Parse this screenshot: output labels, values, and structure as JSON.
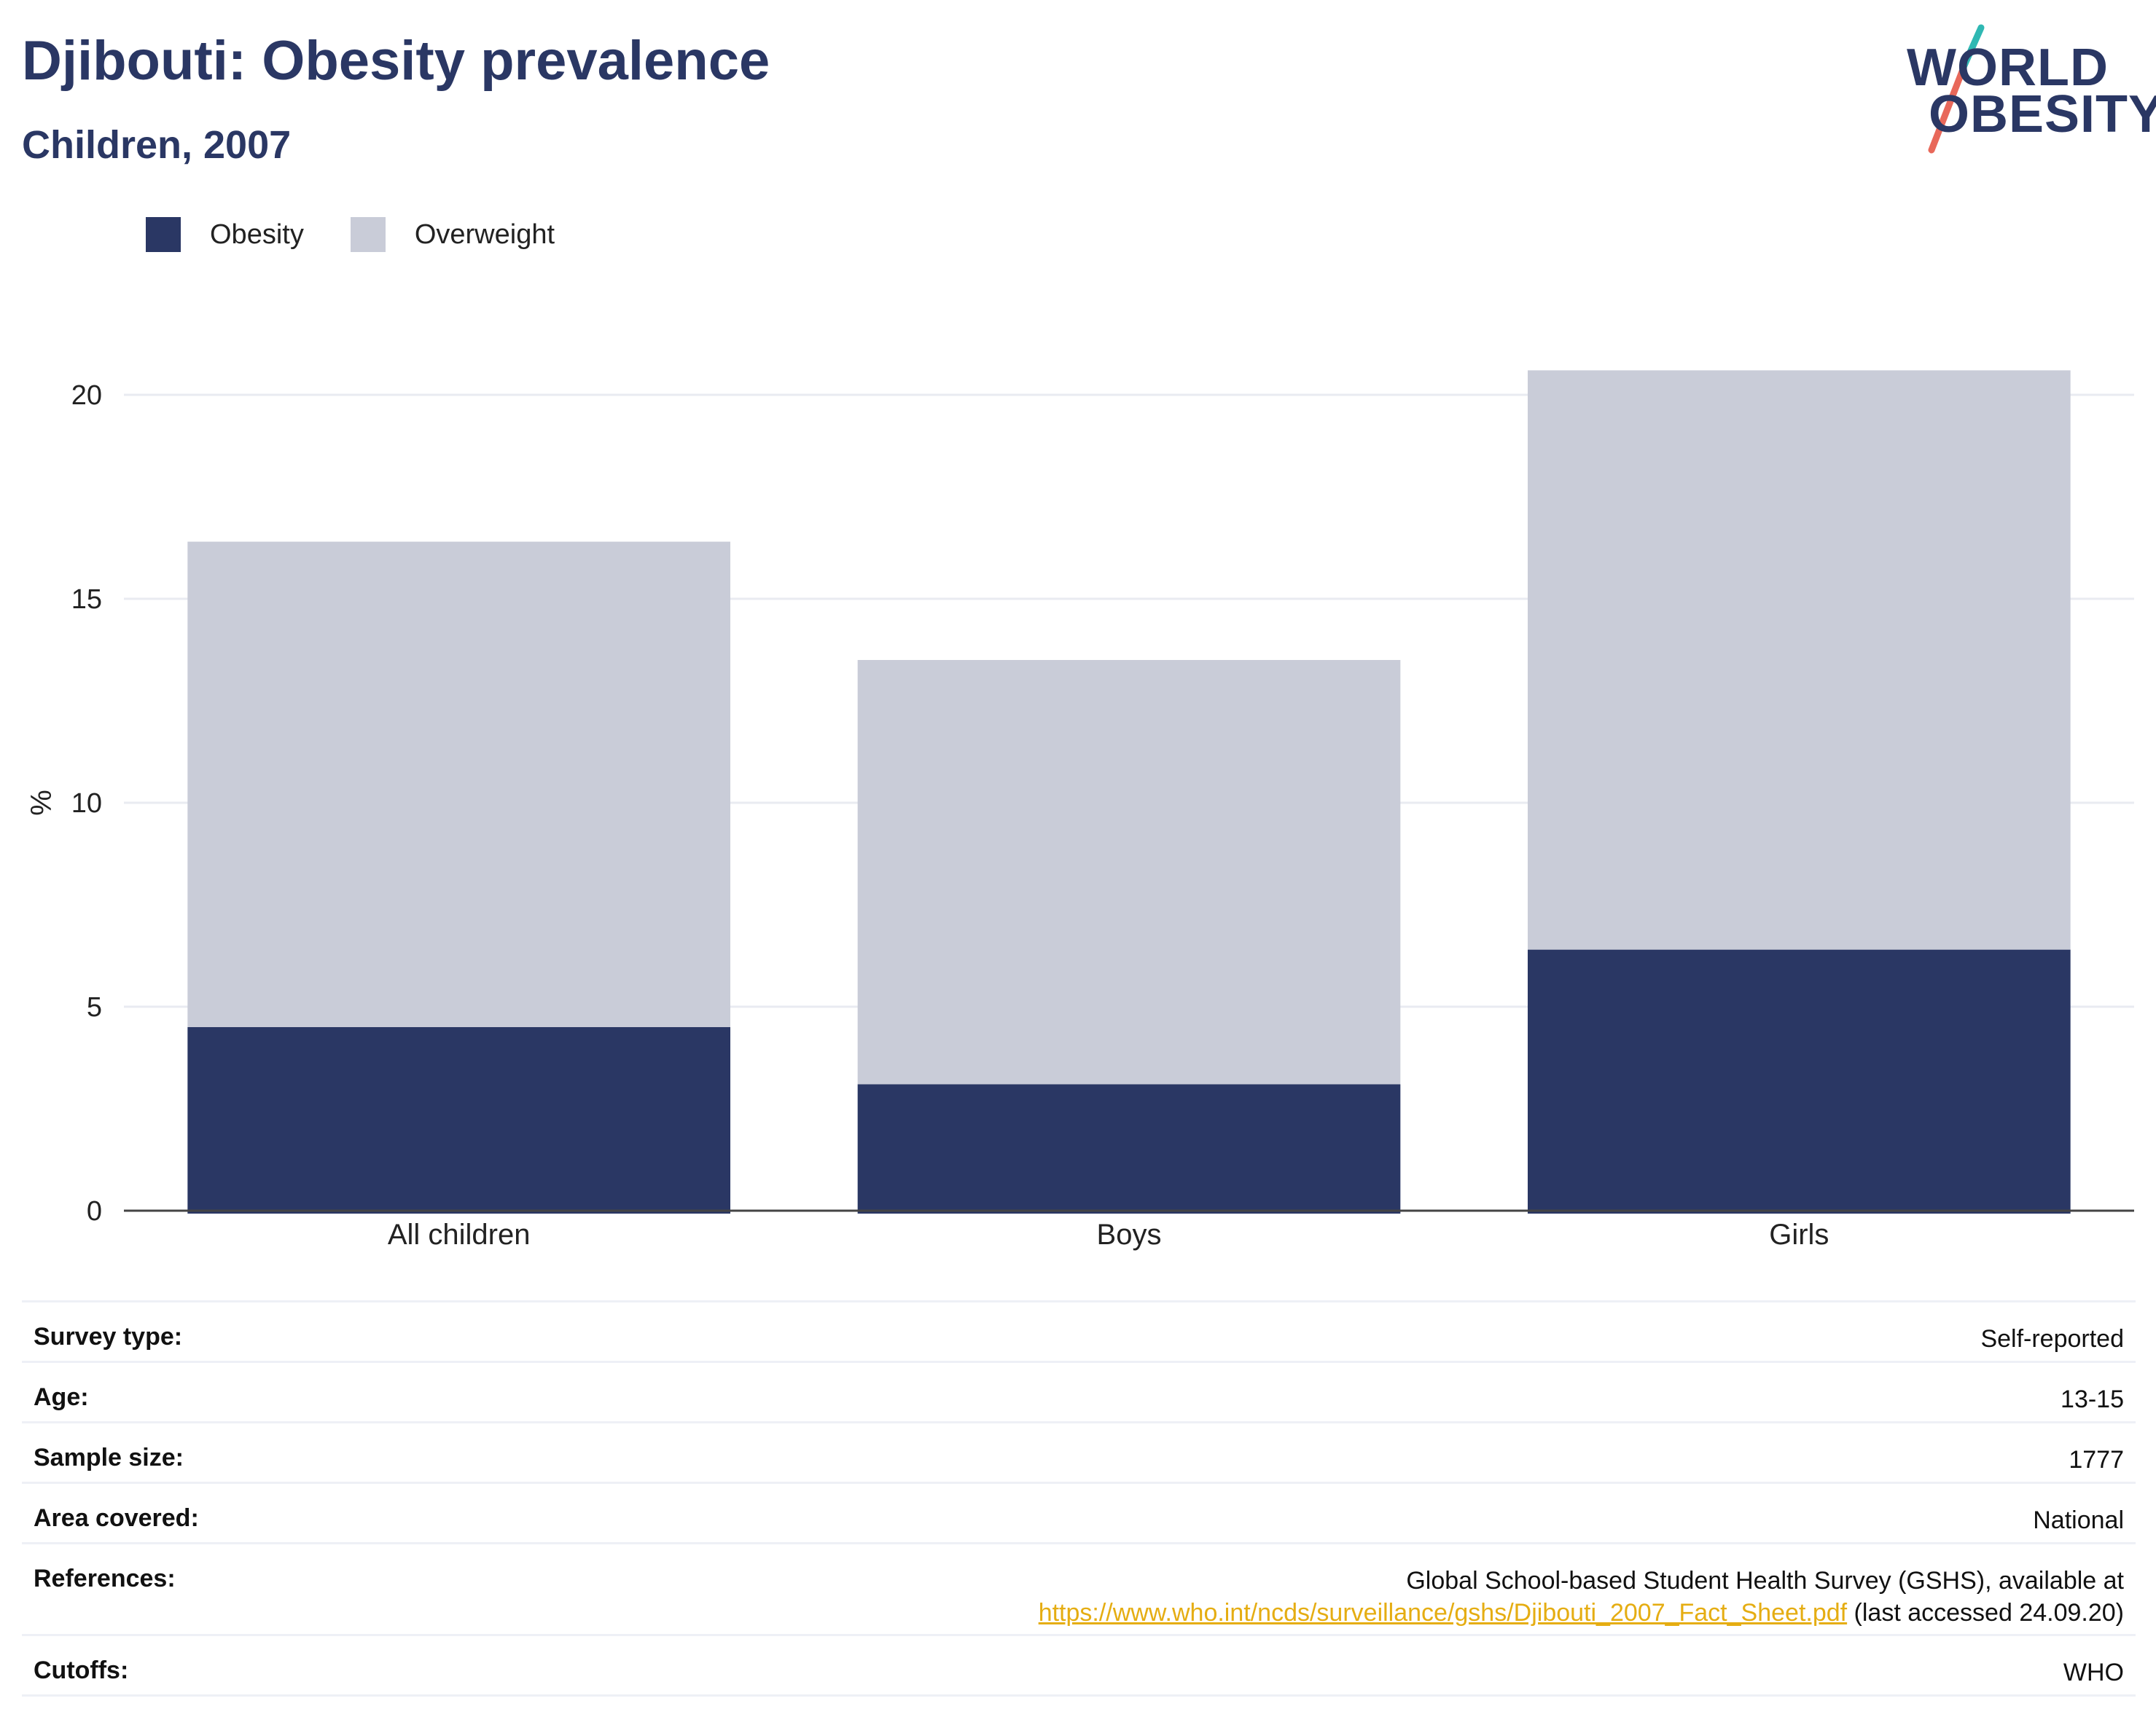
{
  "header": {
    "title": "Djibouti: Obesity prevalence",
    "subtitle": "Children, 2007"
  },
  "logo": {
    "line1": "WORLD",
    "line2": "OBESITY",
    "colors": {
      "text": "#2a3764",
      "slash_top": "#2fb8b3",
      "slash_bottom": "#e8685a"
    }
  },
  "legend": {
    "items": [
      {
        "label": "Obesity",
        "color": "#2a3764"
      },
      {
        "label": "Overweight",
        "color": "#c9ccd8"
      }
    ]
  },
  "chart_data": {
    "type": "bar",
    "stacked": true,
    "categories": [
      "All children",
      "Boys",
      "Girls"
    ],
    "series": [
      {
        "name": "Obesity",
        "values": [
          4.5,
          3.1,
          6.4
        ],
        "color": "#2a3764"
      },
      {
        "name": "Overweight",
        "values": [
          11.9,
          10.4,
          14.2
        ],
        "color": "#c9ccd8"
      }
    ],
    "title": "Djibouti: Obesity prevalence",
    "subtitle": "Children, 2007",
    "xlabel": "",
    "ylabel": "%",
    "ylim": [
      0,
      22
    ],
    "yticks": [
      0,
      5,
      10,
      15,
      20
    ],
    "grid": true,
    "legend_position": "top-left"
  },
  "table": {
    "rows": [
      {
        "label": "Survey type:",
        "value": "Self-reported"
      },
      {
        "label": "Age:",
        "value": "13-15"
      },
      {
        "label": "Sample size:",
        "value": "1777"
      },
      {
        "label": "Area covered:",
        "value": "National"
      },
      {
        "label": "References:",
        "value_line1": "Global School-based Student Health Survey (GSHS), available at",
        "link": "https://www.who.int/ncds/surveillance/gshs/Djibouti_2007_Fact_Sheet.pdf",
        "value_suffix": " (last accessed 24.09.20)"
      },
      {
        "label": "Cutoffs:",
        "value": "WHO"
      }
    ]
  }
}
